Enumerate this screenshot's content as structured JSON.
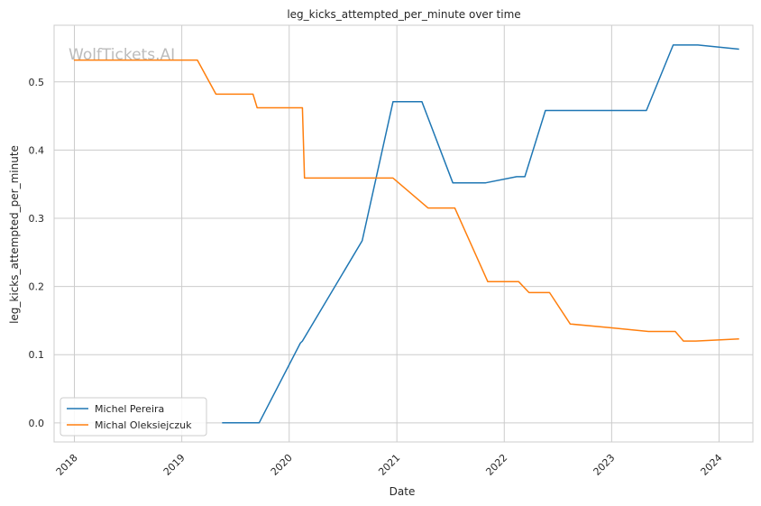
{
  "chart_data": {
    "type": "line",
    "title": "leg_kicks_attempted_per_minute over time",
    "xlabel": "Date",
    "ylabel": "leg_kicks_attempted_per_minute",
    "watermark": "WolfTickets.AI",
    "xlim": [
      "2017-10-24",
      "2024-04-25"
    ],
    "ylim": [
      -0.028,
      0.583
    ],
    "x_ticks": [
      "2018-01-01",
      "2019-01-01",
      "2020-01-01",
      "2021-01-01",
      "2022-01-01",
      "2023-01-01",
      "2024-01-01"
    ],
    "x_tick_labels": [
      "2018",
      "2019",
      "2020",
      "2021",
      "2022",
      "2023",
      "2024"
    ],
    "y_ticks": [
      0.0,
      0.1,
      0.2,
      0.3,
      0.4,
      0.5
    ],
    "y_tick_labels": [
      "0.0",
      "0.1",
      "0.2",
      "0.3",
      "0.4",
      "0.5"
    ],
    "grid": true,
    "legend_position": "lower-left",
    "series": [
      {
        "name": "Michel Pereira",
        "color": "#1f77b4",
        "points": [
          {
            "x": "2019-05-18",
            "y": 0.0
          },
          {
            "x": "2019-09-21",
            "y": 0.0
          },
          {
            "x": "2020-02-08",
            "y": 0.117
          },
          {
            "x": "2020-02-15",
            "y": 0.12
          },
          {
            "x": "2020-09-05",
            "y": 0.267
          },
          {
            "x": "2020-12-19",
            "y": 0.471
          },
          {
            "x": "2021-03-27",
            "y": 0.471
          },
          {
            "x": "2021-07-10",
            "y": 0.352
          },
          {
            "x": "2021-10-30",
            "y": 0.352
          },
          {
            "x": "2022-02-12",
            "y": 0.361
          },
          {
            "x": "2022-03-12",
            "y": 0.361
          },
          {
            "x": "2022-05-21",
            "y": 0.458
          },
          {
            "x": "2023-04-29",
            "y": 0.458
          },
          {
            "x": "2023-07-29",
            "y": 0.554
          },
          {
            "x": "2023-10-21",
            "y": 0.554
          },
          {
            "x": "2024-03-09",
            "y": 0.548
          }
        ]
      },
      {
        "name": "Michal Oleksiejczuk",
        "color": "#ff7f0e",
        "points": [
          {
            "x": "2017-12-30",
            "y": 0.532
          },
          {
            "x": "2019-02-23",
            "y": 0.532
          },
          {
            "x": "2019-04-27",
            "y": 0.482
          },
          {
            "x": "2019-08-31",
            "y": 0.482
          },
          {
            "x": "2019-09-14",
            "y": 0.462
          },
          {
            "x": "2020-02-15",
            "y": 0.462
          },
          {
            "x": "2020-02-22",
            "y": 0.359
          },
          {
            "x": "2020-12-19",
            "y": 0.359
          },
          {
            "x": "2021-04-17",
            "y": 0.315
          },
          {
            "x": "2021-07-17",
            "y": 0.315
          },
          {
            "x": "2021-11-06",
            "y": 0.207
          },
          {
            "x": "2022-02-19",
            "y": 0.207
          },
          {
            "x": "2022-03-26",
            "y": 0.191
          },
          {
            "x": "2022-06-04",
            "y": 0.191
          },
          {
            "x": "2022-08-13",
            "y": 0.145
          },
          {
            "x": "2022-12-17",
            "y": 0.14
          },
          {
            "x": "2023-05-06",
            "y": 0.134
          },
          {
            "x": "2023-08-05",
            "y": 0.134
          },
          {
            "x": "2023-09-02",
            "y": 0.12
          },
          {
            "x": "2023-10-14",
            "y": 0.12
          },
          {
            "x": "2024-03-09",
            "y": 0.123
          }
        ]
      }
    ]
  }
}
